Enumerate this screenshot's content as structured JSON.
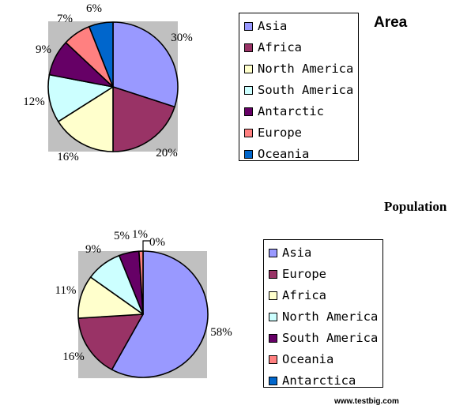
{
  "chart_data": [
    {
      "type": "pie",
      "title": "Area",
      "categories": [
        "Asia",
        "Africa",
        "North America",
        "South America",
        "Antarctic",
        "Europe",
        "Oceania"
      ],
      "values": [
        30,
        20,
        16,
        12,
        9,
        7,
        6
      ],
      "value_labels": [
        "30%",
        "20%",
        "16%",
        "12%",
        "9%",
        "7%",
        "6%"
      ],
      "colors": [
        "#9999ff",
        "#993366",
        "#ffffcc",
        "#ccffff",
        "#660066",
        "#ff8080",
        "#0066cc"
      ],
      "plot_background": "#c0c0c0",
      "legend_position": "right"
    },
    {
      "type": "pie",
      "title": "Population",
      "categories": [
        "Asia",
        "Europe",
        "Africa",
        "North America",
        "South America",
        "Oceania",
        "Antarctica"
      ],
      "values": [
        58,
        16,
        11,
        9,
        5,
        1,
        0
      ],
      "value_labels": [
        "58%",
        "16%",
        "11%",
        "9%",
        "5%",
        "1%",
        "0%"
      ],
      "colors": [
        "#9999ff",
        "#993366",
        "#ffffcc",
        "#ccffff",
        "#660066",
        "#ff8080",
        "#0066cc"
      ],
      "plot_background": "#c0c0c0",
      "legend_position": "right"
    }
  ],
  "source_text": "www.testbig.com"
}
